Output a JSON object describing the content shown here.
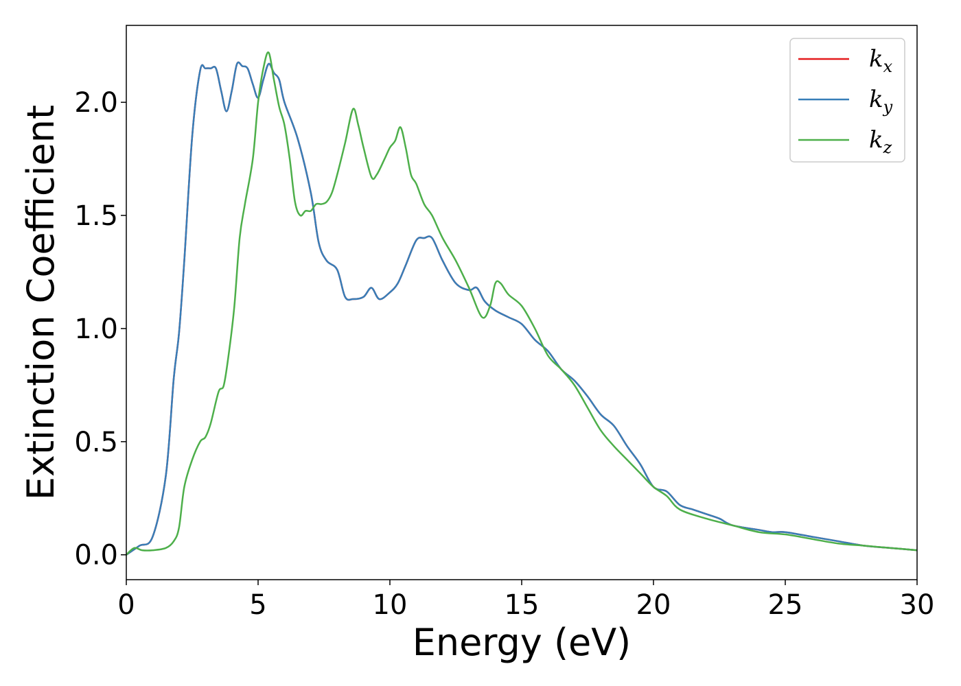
{
  "chart_data": {
    "type": "line",
    "xlabel": "Energy (eV)",
    "ylabel": "Extinction Coefficient",
    "xlim": [
      0,
      30
    ],
    "ylim": [
      -0.11,
      2.34
    ],
    "xticks": [
      0,
      5,
      10,
      15,
      20,
      25,
      30
    ],
    "yticks": [
      0.0,
      0.5,
      1.0,
      1.5,
      2.0
    ],
    "xtick_labels": [
      "0",
      "5",
      "10",
      "15",
      "20",
      "25",
      "30"
    ],
    "ytick_labels": [
      "0.0",
      "0.5",
      "1.0",
      "1.5",
      "2.0"
    ],
    "grid": false,
    "legend_position": "top-right",
    "series": [
      {
        "name": "k",
        "subscript": "x",
        "color": "#e41a1c",
        "x": [
          0,
          0.5,
          1,
          1.5,
          1.8,
          2,
          2.2,
          2.5,
          2.8,
          3,
          3.2,
          3.4,
          3.6,
          3.8,
          4,
          4.2,
          4.4,
          4.6,
          4.8,
          5,
          5.2,
          5.4,
          5.6,
          5.8,
          6,
          6.5,
          7,
          7.3,
          7.6,
          8,
          8.3,
          8.6,
          9,
          9.3,
          9.6,
          10,
          10.3,
          10.6,
          11,
          11.3,
          11.6,
          12,
          12.5,
          13,
          13.3,
          13.6,
          14,
          14.5,
          15,
          15.5,
          16,
          16.5,
          17,
          17.5,
          18,
          18.5,
          19,
          19.5,
          20,
          20.5,
          21,
          21.5,
          22,
          22.5,
          23,
          24,
          24.5,
          25,
          26,
          27,
          28,
          29,
          30
        ],
        "y": [
          0,
          0.04,
          0.08,
          0.35,
          0.78,
          0.98,
          1.3,
          1.85,
          2.14,
          2.15,
          2.15,
          2.15,
          2.05,
          1.96,
          2.05,
          2.17,
          2.16,
          2.15,
          2.08,
          2.02,
          2.1,
          2.17,
          2.13,
          2.1,
          2.0,
          1.84,
          1.6,
          1.38,
          1.3,
          1.26,
          1.14,
          1.13,
          1.14,
          1.18,
          1.13,
          1.16,
          1.2,
          1.28,
          1.39,
          1.4,
          1.4,
          1.3,
          1.2,
          1.17,
          1.18,
          1.12,
          1.08,
          1.05,
          1.02,
          0.95,
          0.9,
          0.82,
          0.77,
          0.7,
          0.62,
          0.57,
          0.48,
          0.4,
          0.3,
          0.28,
          0.22,
          0.2,
          0.18,
          0.16,
          0.13,
          0.11,
          0.1,
          0.1,
          0.08,
          0.06,
          0.04,
          0.03,
          0.02
        ]
      },
      {
        "name": "k",
        "subscript": "y",
        "color": "#377eb8",
        "x": [
          0,
          0.5,
          1,
          1.5,
          1.8,
          2,
          2.2,
          2.5,
          2.8,
          3,
          3.2,
          3.4,
          3.6,
          3.8,
          4,
          4.2,
          4.4,
          4.6,
          4.8,
          5,
          5.2,
          5.4,
          5.6,
          5.8,
          6,
          6.5,
          7,
          7.3,
          7.6,
          8,
          8.3,
          8.6,
          9,
          9.3,
          9.6,
          10,
          10.3,
          10.6,
          11,
          11.3,
          11.6,
          12,
          12.5,
          13,
          13.3,
          13.6,
          14,
          14.5,
          15,
          15.5,
          16,
          16.5,
          17,
          17.5,
          18,
          18.5,
          19,
          19.5,
          20,
          20.5,
          21,
          21.5,
          22,
          22.5,
          23,
          24,
          24.5,
          25,
          26,
          27,
          28,
          29,
          30
        ],
        "y": [
          0,
          0.04,
          0.08,
          0.35,
          0.78,
          0.98,
          1.3,
          1.85,
          2.14,
          2.15,
          2.15,
          2.15,
          2.05,
          1.96,
          2.05,
          2.17,
          2.16,
          2.15,
          2.08,
          2.02,
          2.1,
          2.17,
          2.13,
          2.1,
          2.0,
          1.84,
          1.6,
          1.38,
          1.3,
          1.26,
          1.14,
          1.13,
          1.14,
          1.18,
          1.13,
          1.16,
          1.2,
          1.28,
          1.39,
          1.4,
          1.4,
          1.3,
          1.2,
          1.17,
          1.18,
          1.12,
          1.08,
          1.05,
          1.02,
          0.95,
          0.9,
          0.82,
          0.77,
          0.7,
          0.62,
          0.57,
          0.48,
          0.4,
          0.3,
          0.28,
          0.22,
          0.2,
          0.18,
          0.16,
          0.13,
          0.11,
          0.1,
          0.1,
          0.08,
          0.06,
          0.04,
          0.03,
          0.02
        ]
      },
      {
        "name": "k",
        "subscript": "z",
        "color": "#4daf4a",
        "x": [
          0,
          0.3,
          0.6,
          1,
          1.5,
          1.8,
          2,
          2.2,
          2.5,
          2.8,
          3,
          3.2,
          3.5,
          3.7,
          3.9,
          4.1,
          4.3,
          4.5,
          4.8,
          5,
          5.2,
          5.4,
          5.6,
          5.8,
          6,
          6.2,
          6.4,
          6.6,
          6.8,
          7,
          7.2,
          7.4,
          7.6,
          7.8,
          8,
          8.3,
          8.6,
          8.8,
          9,
          9.3,
          9.5,
          9.8,
          10,
          10.2,
          10.4,
          10.6,
          10.8,
          11,
          11.3,
          11.6,
          12,
          12.5,
          13,
          13.5,
          13.8,
          14,
          14.2,
          14.5,
          15,
          15.5,
          16,
          16.5,
          17,
          17.5,
          18,
          18.5,
          19,
          19.5,
          20,
          20.5,
          21,
          22,
          23,
          24,
          25,
          26,
          27,
          28,
          29,
          30
        ],
        "y": [
          0,
          0.03,
          0.02,
          0.02,
          0.03,
          0.06,
          0.12,
          0.3,
          0.42,
          0.5,
          0.52,
          0.58,
          0.72,
          0.75,
          0.9,
          1.1,
          1.4,
          1.55,
          1.75,
          2.0,
          2.15,
          2.22,
          2.1,
          1.98,
          1.9,
          1.75,
          1.56,
          1.5,
          1.52,
          1.52,
          1.55,
          1.55,
          1.56,
          1.6,
          1.68,
          1.82,
          1.97,
          1.9,
          1.8,
          1.67,
          1.68,
          1.75,
          1.8,
          1.83,
          1.89,
          1.8,
          1.68,
          1.64,
          1.55,
          1.5,
          1.4,
          1.3,
          1.18,
          1.05,
          1.1,
          1.2,
          1.2,
          1.15,
          1.1,
          1.0,
          0.88,
          0.82,
          0.75,
          0.65,
          0.55,
          0.48,
          0.42,
          0.36,
          0.3,
          0.26,
          0.2,
          0.16,
          0.13,
          0.1,
          0.09,
          0.07,
          0.05,
          0.04,
          0.03,
          0.02
        ]
      }
    ]
  }
}
